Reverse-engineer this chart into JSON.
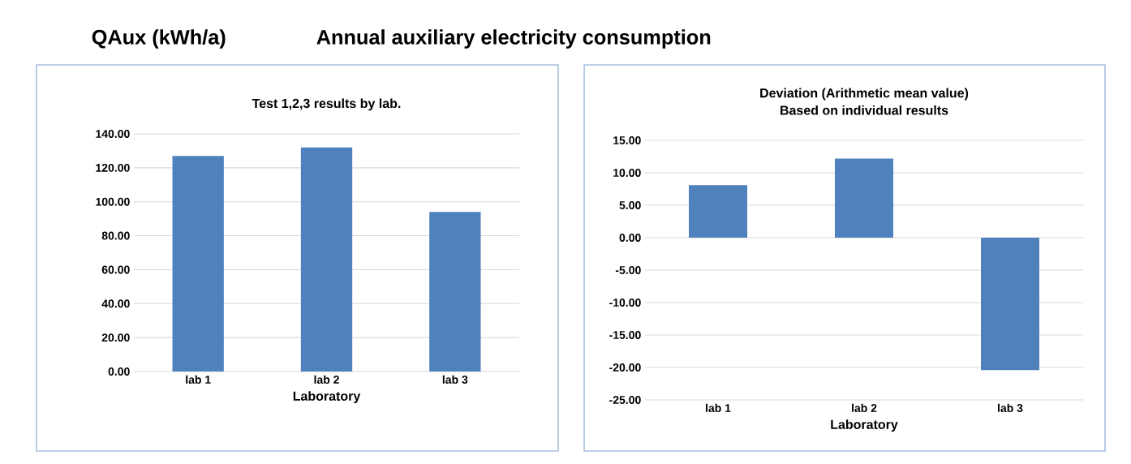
{
  "chart_data": [
    {
      "type": "bar",
      "title": "Test 1,2,3 results by lab.",
      "xlabel": "Laboratory",
      "annotations": [
        "QAux (kWh/a)",
        "Annual auxiliary electricity consumption"
      ],
      "categories": [
        "lab 1",
        "lab 2",
        "lab 3"
      ],
      "series": [
        {
          "color": "#4f81bd",
          "values": [
            127,
            132,
            94
          ]
        }
      ],
      "ylim": [
        0,
        140
      ],
      "yticks": [
        {
          "value": 0,
          "label": "0.00"
        },
        {
          "value": 20,
          "label": "20.00"
        },
        {
          "value": 40,
          "label": "40.00"
        },
        {
          "value": 60,
          "label": "60.00"
        },
        {
          "value": 80,
          "label": "80.00"
        },
        {
          "value": 100,
          "label": "100.00"
        },
        {
          "value": 120,
          "label": "120.00"
        },
        {
          "value": 140,
          "label": "140.00"
        }
      ],
      "grid": "y"
    },
    {
      "type": "bar",
      "title": "Deviation (Arithmetic mean value)",
      "subtitle": "Based on individual results",
      "xlabel": "Laboratory",
      "categories": [
        "lab 1",
        "lab 2",
        "lab 3"
      ],
      "series": [
        {
          "color": "#4f81bd",
          "values": [
            8.1,
            12.2,
            -20.4
          ]
        }
      ],
      "ylim": [
        -25,
        15
      ],
      "yticks": [
        {
          "value": -25,
          "label": "-25.00"
        },
        {
          "value": -20,
          "label": "-20.00"
        },
        {
          "value": -15,
          "label": "-15.00"
        },
        {
          "value": -10,
          "label": "-10.00"
        },
        {
          "value": -5,
          "label": "-5.00"
        },
        {
          "value": 0,
          "label": "0.00"
        },
        {
          "value": 5,
          "label": "5.00"
        },
        {
          "value": 10,
          "label": "10.00"
        },
        {
          "value": 15,
          "label": "15.00"
        }
      ],
      "grid": "y"
    }
  ]
}
